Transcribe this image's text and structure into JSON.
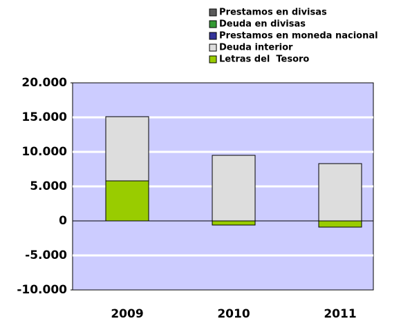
{
  "chart_data": {
    "type": "bar",
    "stacked": true,
    "categories": [
      "2009",
      "2010",
      "2011"
    ],
    "series": [
      {
        "name": "Prestamos en divisas",
        "color": "#5a5a5a",
        "values": [
          0,
          0,
          0
        ]
      },
      {
        "name": "Deuda en divisas",
        "color": "#339933",
        "values": [
          0,
          0,
          0
        ]
      },
      {
        "name": "Prestamos en moneda nacional",
        "color": "#333399",
        "values": [
          0,
          0,
          0
        ]
      },
      {
        "name": "Deuda interior",
        "color": "#dddddd",
        "values": [
          9300,
          9500,
          8300
        ]
      },
      {
        "name": "Letras del  Tesoro",
        "color": "#99cc00",
        "values": [
          5800,
          -600,
          -900
        ]
      }
    ],
    "ylim": [
      -10000,
      20000
    ],
    "yticks": [
      {
        "value": -10000,
        "label": "-10.000"
      },
      {
        "value": -5000,
        "label": "-5.000"
      },
      0,
      {
        "value": 5000,
        "label": "5.000"
      },
      {
        "value": 10000,
        "label": "10.000"
      },
      {
        "value": 15000,
        "label": "15.000"
      },
      {
        "value": 20000,
        "label": "20.000"
      }
    ],
    "grid": true,
    "legend": "top",
    "plot_background": "#ccccff"
  }
}
